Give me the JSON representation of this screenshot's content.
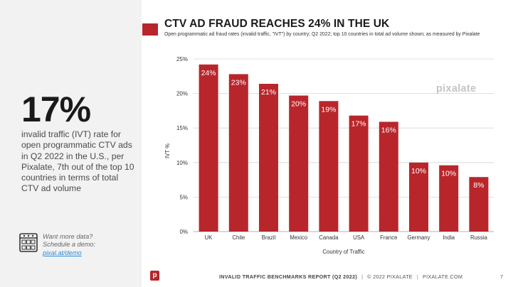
{
  "sidebar": {
    "stat_value": "17%",
    "stat_description": "invalid traffic (IVT) rate for open programmatic CTV ads in Q2 2022 in the U.S., per Pixalate, 7th out of the top 10 countries in terms of total CTV ad volume",
    "cta_line1": "Want more data?",
    "cta_line2": "Schedule a demo:",
    "cta_link": "pixal.at/demo",
    "cta_icon": "calendar-icon"
  },
  "header": {
    "title": "CTV AD FRAUD REACHES 24% IN THE UK",
    "subtitle": "Open programmatic ad fraud rates (invalid traffic, \"IVT\") by country; Q2 2022; top 10 countries in total ad volume shown; as measured by Pixalate"
  },
  "watermark": "pixalate",
  "colors": {
    "bar": "#b8262b",
    "accent": "#b8262b",
    "sidebar_bg": "#f2f2f2",
    "link": "#2b8bd6"
  },
  "chart_data": {
    "type": "bar",
    "title": "CTV AD FRAUD REACHES 24% IN THE UK",
    "xlabel": "Country of Traffic",
    "ylabel": "IVT %",
    "categories": [
      "UK",
      "Chile",
      "Brazil",
      "Mexico",
      "Canada",
      "USA",
      "France",
      "Germany",
      "India",
      "Russia"
    ],
    "values": [
      24.2,
      22.8,
      21.4,
      19.7,
      18.9,
      16.8,
      15.9,
      10.0,
      9.6,
      7.9
    ],
    "data_labels": [
      "24%",
      "23%",
      "21%",
      "20%",
      "19%",
      "17%",
      "16%",
      "10%",
      "10%",
      "8%"
    ],
    "yticks": [
      "0%",
      "5%",
      "10%",
      "15%",
      "20%",
      "25%"
    ],
    "ylim": [
      0,
      25
    ],
    "grid": true,
    "legend": "none"
  },
  "footer": {
    "report": "INVALID TRAFFIC BENCHMARKS REPORT (Q2 2022)",
    "copyright": "© 2022 PIXALATE",
    "site": "PIXALATE.COM",
    "page": "7",
    "logo_letter": "p"
  }
}
